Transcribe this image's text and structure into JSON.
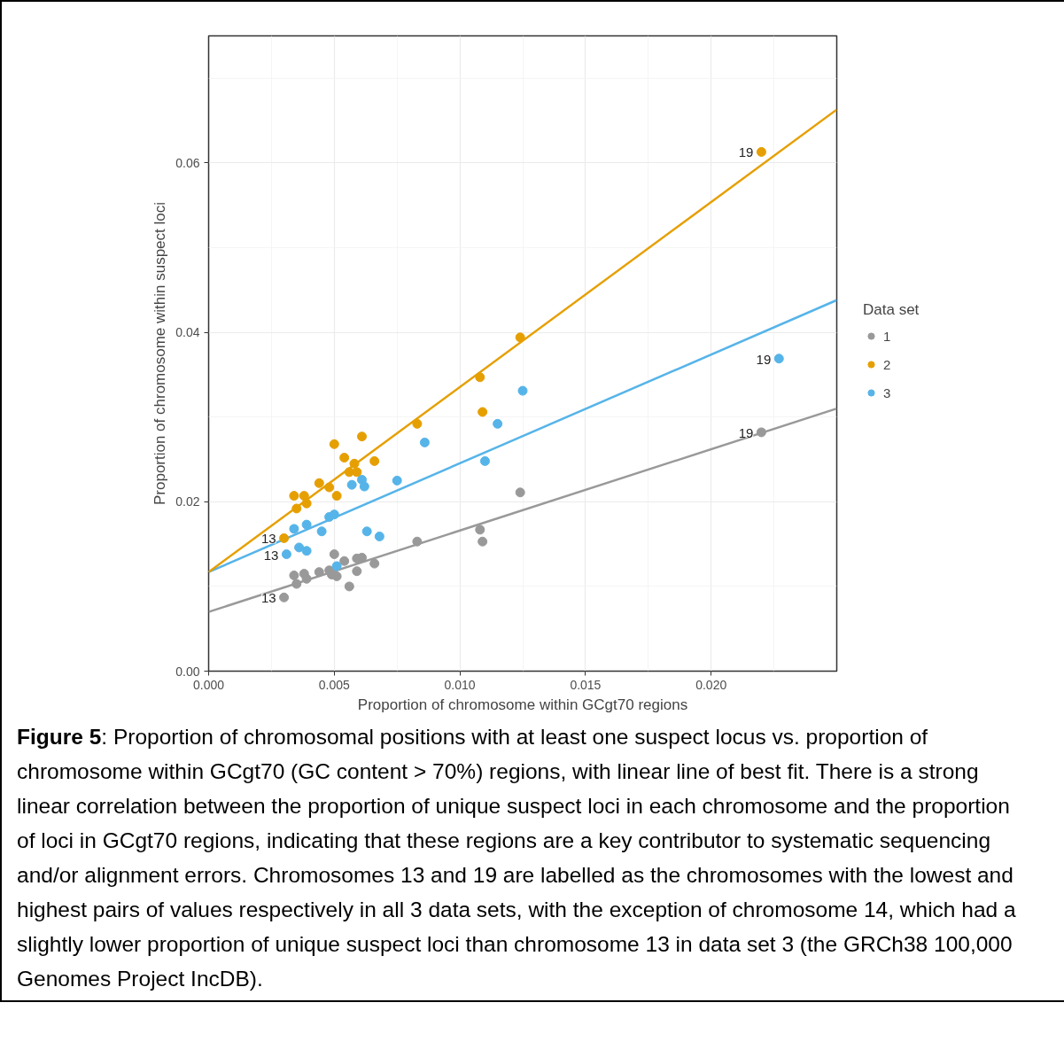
{
  "chart_data": {
    "type": "scatter",
    "xlabel": "Proportion of chromosome within GCgt70 regions",
    "ylabel": "Proportion of chromosome within suspect loci",
    "legend_title": "Data set",
    "legend": "right",
    "grid": true,
    "marker": "circle",
    "xlim": [
      0,
      0.025
    ],
    "ylim": [
      0,
      0.075
    ],
    "xticks": [
      {
        "value": 0,
        "label": "0.000"
      },
      {
        "value": 0.005,
        "label": "0.005"
      },
      {
        "value": 0.01,
        "label": "0.010"
      },
      {
        "value": 0.015,
        "label": "0.015"
      },
      {
        "value": 0.02,
        "label": "0.020"
      }
    ],
    "yticks": [
      {
        "value": 0,
        "label": "0.00"
      },
      {
        "value": 0.02,
        "label": "0.02"
      },
      {
        "value": 0.04,
        "label": "0.04"
      },
      {
        "value": 0.06,
        "label": "0.06"
      }
    ],
    "series": [
      {
        "name": "1",
        "color": "#999999",
        "x": [
          0.003,
          0.0034,
          0.0035,
          0.0038,
          0.0039,
          0.0044,
          0.0048,
          0.005,
          0.0049,
          0.0051,
          0.0054,
          0.0056,
          0.0059,
          0.0059,
          0.0061,
          0.0066,
          0.0083,
          0.0108,
          0.0109,
          0.0124,
          0.022
        ],
        "values": [
          0.0087,
          0.0113,
          0.0103,
          0.0115,
          0.0109,
          0.0117,
          0.0119,
          0.0138,
          0.0114,
          0.0112,
          0.013,
          0.01,
          0.0118,
          0.0133,
          0.0134,
          0.0127,
          0.0153,
          0.0167,
          0.0153,
          0.0211,
          0.0282
        ]
      },
      {
        "name": "2",
        "color": "#e69f00",
        "x": [
          0.003,
          0.0034,
          0.0035,
          0.0038,
          0.0039,
          0.0044,
          0.0048,
          0.005,
          0.0051,
          0.0054,
          0.0056,
          0.0058,
          0.0059,
          0.0061,
          0.0066,
          0.0083,
          0.0108,
          0.0109,
          0.0124,
          0.022
        ],
        "values": [
          0.0157,
          0.0207,
          0.0192,
          0.0207,
          0.0198,
          0.0222,
          0.0217,
          0.0268,
          0.0207,
          0.0252,
          0.0235,
          0.0245,
          0.0235,
          0.0277,
          0.0248,
          0.0292,
          0.0347,
          0.0306,
          0.0394,
          0.0613
        ]
      },
      {
        "name": "3",
        "color": "#56b4e9",
        "x": [
          0.0031,
          0.0034,
          0.0036,
          0.0039,
          0.0039,
          0.0045,
          0.0048,
          0.005,
          0.0051,
          0.0057,
          0.0061,
          0.0062,
          0.0063,
          0.0068,
          0.0075,
          0.0086,
          0.011,
          0.0115,
          0.0125,
          0.0227
        ],
        "values": [
          0.0138,
          0.0168,
          0.0146,
          0.0142,
          0.0173,
          0.0165,
          0.0182,
          0.0185,
          0.0124,
          0.022,
          0.0226,
          0.0218,
          0.0165,
          0.0159,
          0.0225,
          0.027,
          0.0248,
          0.0292,
          0.0331,
          0.0369
        ]
      },
      {
        "type": "line",
        "marker": "none",
        "color": "#999999",
        "x": [
          0,
          0.025
        ],
        "values": [
          0.007,
          0.031
        ]
      },
      {
        "type": "line",
        "marker": "none",
        "color": "#e69f00",
        "x": [
          0,
          0.025
        ],
        "values": [
          0.0117,
          0.0663
        ]
      },
      {
        "type": "line",
        "marker": "none",
        "color": "#56b4e9",
        "x": [
          0,
          0.025
        ],
        "values": [
          0.0117,
          0.0438
        ]
      }
    ],
    "annotations": [
      {
        "text": "13",
        "x": 0.003,
        "y": 0.0087
      },
      {
        "text": "13",
        "x": 0.003,
        "y": 0.0157
      },
      {
        "text": "13",
        "x": 0.0031,
        "y": 0.0138
      },
      {
        "text": "19",
        "x": 0.022,
        "y": 0.0613
      },
      {
        "text": "19",
        "x": 0.0227,
        "y": 0.0369
      },
      {
        "text": "19",
        "x": 0.022,
        "y": 0.0282
      },
      "Figure 5: Proportion of chromosomal positions with at least one suspect locus vs. proportion of chromosome within GCgt70 (GC content > 70%) regions, with linear line of best fit. There is a strong linear correlation between the proportion of unique suspect loci in each chromosome and the proportion of loci in GCgt70 regions, indicating that these regions are a key contributor to systematic sequencing and/or alignment errors. Chromosomes 13 and 19 are labelled as the chromosomes with the lowest and highest pairs of values respectively in all 3 data sets, with the exception of chromosome 14, which had a slightly lower proportion of unique suspect loci than chromosome 13 in data set 3 (the GRCh38 100,000 Genomes Project IncDB)."
    ]
  }
}
